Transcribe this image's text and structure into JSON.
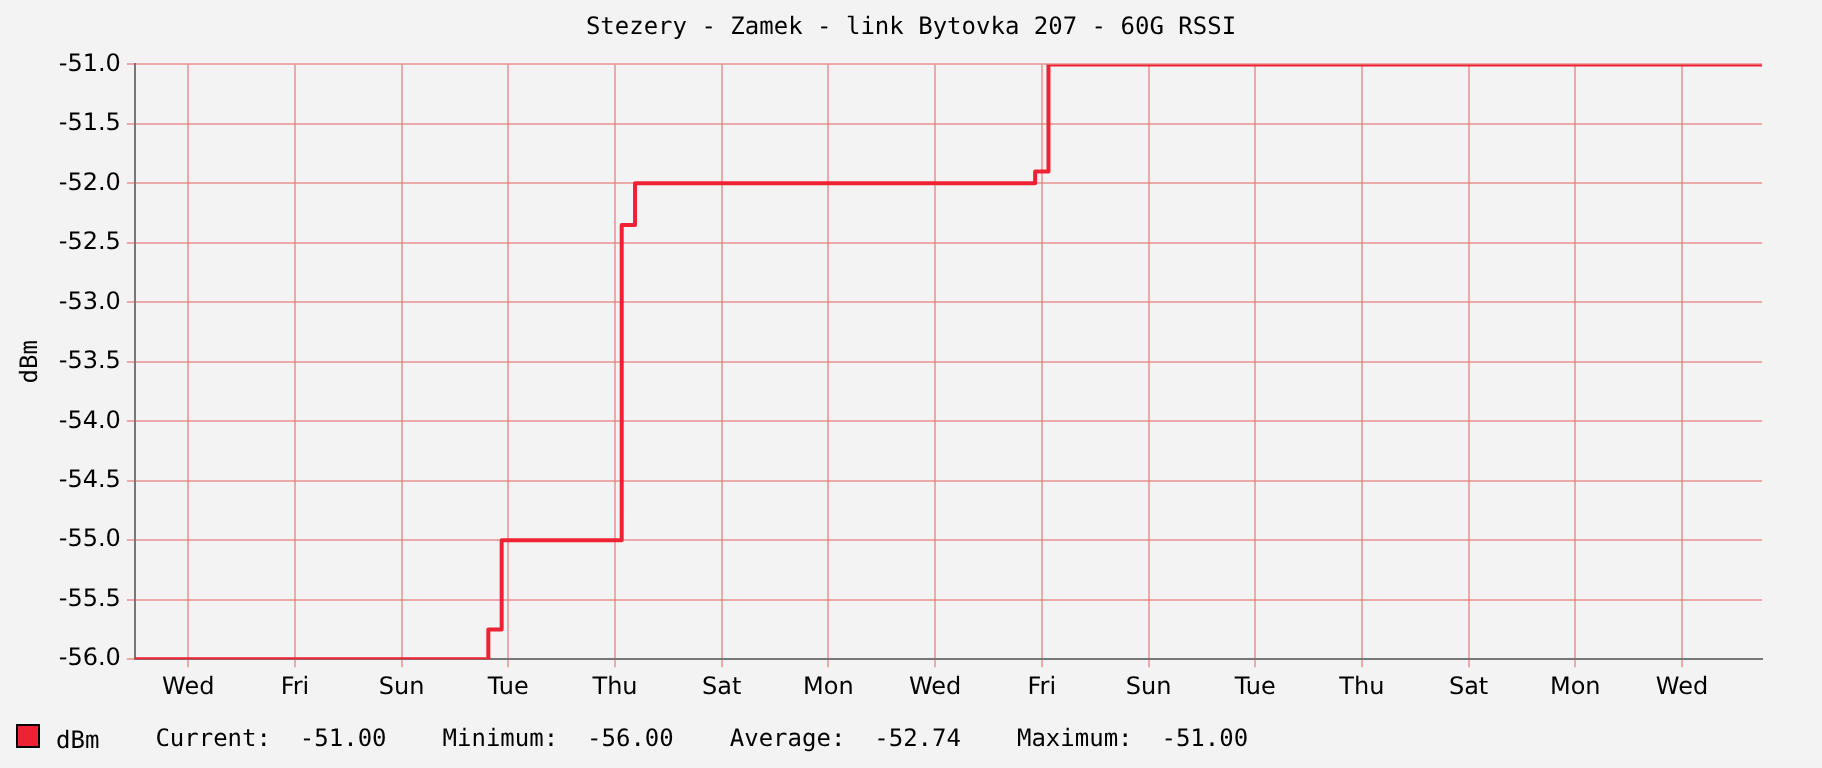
{
  "chart_data": {
    "type": "step",
    "title": "Stezery - Zamek - link Bytovka 207 - 60G RSSI",
    "ylabel": "dBm",
    "categories": [
      null,
      null,
      null,
      null,
      "Wed",
      null,
      null,
      null,
      null,
      null,
      null,
      null,
      "Fri",
      null,
      null,
      null,
      null,
      null,
      null,
      null,
      "Sun",
      null,
      null,
      null,
      null,
      null,
      null,
      null,
      "Tue",
      null,
      null,
      null,
      null,
      null,
      null,
      null,
      "Thu",
      null,
      null,
      null,
      null,
      null,
      null,
      null,
      "Sat",
      null,
      null,
      null,
      null,
      null,
      null,
      null,
      "Mon",
      null,
      null,
      null,
      null,
      null,
      null,
      null,
      "Wed",
      null,
      null,
      null,
      null,
      null,
      null,
      null,
      "Fri",
      null,
      null,
      null,
      null,
      null,
      null,
      null,
      "Sun",
      null,
      null,
      null,
      null,
      null,
      null,
      null,
      "Tue",
      null,
      null,
      null,
      null,
      null,
      null,
      null,
      "Thu",
      null,
      null,
      null,
      null,
      null,
      null,
      null,
      "Sat",
      null,
      null,
      null,
      null,
      null,
      null,
      null,
      "Mon",
      null,
      null,
      null,
      null,
      null,
      null,
      null,
      "Wed",
      null,
      null,
      null,
      null,
      null,
      null
    ],
    "series": [
      {
        "name": "dBm",
        "color": "#ee2233",
        "values": [
          -56,
          -56,
          -56,
          -56,
          -56,
          -56,
          -56,
          -56,
          -56,
          -56,
          -56,
          -56,
          -56,
          -56,
          -56,
          -56,
          -56,
          -56,
          -56,
          -56,
          -56,
          -56,
          -56,
          -56,
          -56,
          -56,
          -56,
          -55.75,
          -55,
          -55,
          -55,
          -55,
          -55,
          -55,
          -55,
          -55,
          -55,
          -52.35,
          -52,
          -52,
          -52,
          -52,
          -52,
          -52,
          -52,
          -52,
          -52,
          -52,
          -52,
          -52,
          -52,
          -52,
          -52,
          -52,
          -52,
          -52,
          -52,
          -52,
          -52,
          -52,
          -52,
          -52,
          -52,
          -52,
          -52,
          -52,
          -52,
          -52,
          -51.9,
          -51,
          -51,
          -51,
          -51,
          -51,
          -51,
          -51,
          -51,
          -51,
          -51,
          -51,
          -51,
          -51,
          -51,
          -51,
          -51,
          -51,
          -51,
          -51,
          -51,
          -51,
          -51,
          -51,
          -51,
          -51,
          -51,
          -51,
          -51,
          -51,
          -51,
          -51,
          -51,
          -51,
          -51,
          -51,
          -51,
          -51,
          -51,
          -51,
          -51,
          -51,
          -51,
          -51,
          -51,
          -51,
          -51,
          -51,
          -51,
          -51,
          -51,
          -51,
          -51,
          -51,
          -51
        ]
      }
    ],
    "ylim": [
      -56,
      -51
    ],
    "yticks": [
      {
        "value": -56,
        "label": "-56.0"
      },
      {
        "value": -55.5,
        "label": "-55.5"
      },
      {
        "value": -55,
        "label": "-55.0"
      },
      {
        "value": -54.5,
        "label": "-54.5"
      },
      {
        "value": -54,
        "label": "-54.0"
      },
      {
        "value": -53.5,
        "label": "-53.5"
      },
      {
        "value": -53,
        "label": "-53.0"
      },
      {
        "value": -52.5,
        "label": "-52.5"
      },
      {
        "value": -52,
        "label": "-52.0"
      },
      {
        "value": -51.5,
        "label": "-51.5"
      },
      {
        "value": -51,
        "label": "-51.0"
      }
    ],
    "grid": true,
    "legend": "bottom left",
    "marker": "none",
    "line_style": "solid",
    "annotations": [
      "Current:  -51.00",
      "Minimum:  -56.00",
      "Average:  -52.74",
      "Maximum:  -51.00"
    ]
  }
}
